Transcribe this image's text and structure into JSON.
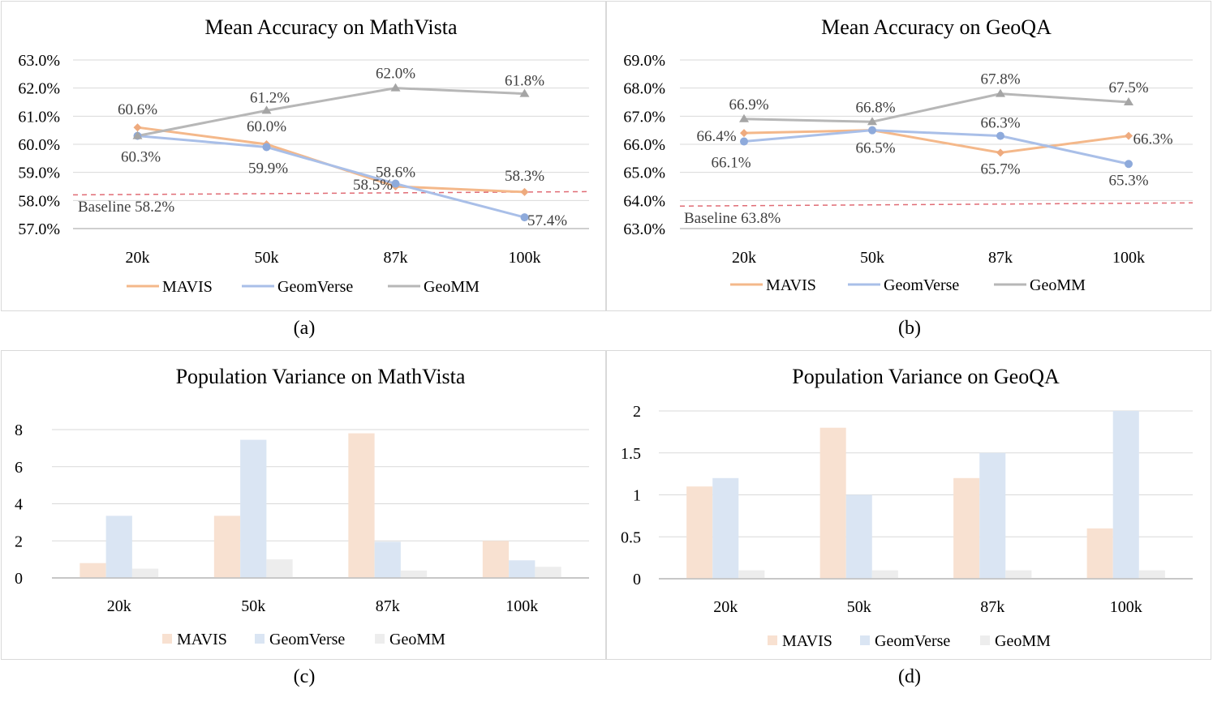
{
  "colors": {
    "MAVIS": "#f4c7a3",
    "MAVIS_line": "#f4b88a",
    "MAVIS_marker": "#eeaa7e",
    "GeomVerse": "#b4c7e7",
    "GeomVerse_line": "#a9bfe8",
    "GeomVerse_marker": "#8eaadb",
    "GeoMM": "#bfbfbf",
    "GeoMM_line": "#b7b7b7",
    "GeoMM_marker": "#a5a5a5",
    "bar_MAVIS": "#f8e1d1",
    "bar_GeomVerse": "#dae5f3",
    "bar_GeoMM": "#ededed",
    "baseline": "#e06c75",
    "grid": "#d9d9d9",
    "axis": "#bfbfbf",
    "text": "#404040"
  },
  "captions": {
    "a": "(a)",
    "b": "(b)",
    "c": "(c)",
    "d": "(d)"
  },
  "chart_data": [
    {
      "id": "a",
      "type": "line",
      "title": "Mean Accuracy on MathVista",
      "categories": [
        "20k",
        "50k",
        "87k",
        "100k"
      ],
      "ylim": [
        57.0,
        63.0
      ],
      "yticks": [
        57.0,
        58.0,
        59.0,
        60.0,
        61.0,
        62.0,
        63.0
      ],
      "ytick_labels": [
        "57.0%",
        "58.0%",
        "59.0%",
        "60.0%",
        "61.0%",
        "62.0%",
        "63.0%"
      ],
      "series": [
        {
          "name": "MAVIS",
          "values": [
            60.6,
            60.0,
            58.5,
            58.3
          ],
          "labels": [
            "60.6%",
            "60.0%",
            "58.5%",
            "58.3%"
          ]
        },
        {
          "name": "GeomVerse",
          "values": [
            60.3,
            59.9,
            58.6,
            57.4
          ],
          "labels": [
            "60.3%",
            "59.9%",
            "58.6%",
            "57.4%"
          ]
        },
        {
          "name": "GeoMM",
          "values": [
            60.3,
            61.2,
            62.0,
            61.8
          ],
          "labels": [
            "",
            "61.2%",
            "62.0%",
            "61.8%"
          ]
        }
      ],
      "baseline": {
        "value": 58.2,
        "label": "Baseline  58.2%"
      },
      "legend": [
        "MAVIS",
        "GeomVerse",
        "GeoMM"
      ]
    },
    {
      "id": "b",
      "type": "line",
      "title": "Mean Accuracy on GeoQA",
      "categories": [
        "20k",
        "50k",
        "87k",
        "100k"
      ],
      "ylim": [
        63.0,
        69.0
      ],
      "yticks": [
        63.0,
        64.0,
        65.0,
        66.0,
        67.0,
        68.0,
        69.0
      ],
      "ytick_labels": [
        "63.0%",
        "64.0%",
        "65.0%",
        "66.0%",
        "67.0%",
        "68.0%",
        "69.0%"
      ],
      "series": [
        {
          "name": "MAVIS",
          "values": [
            66.4,
            66.5,
            65.7,
            66.3
          ],
          "labels": [
            "66.4%",
            "",
            "65.7%",
            "66.3%"
          ]
        },
        {
          "name": "GeomVerse",
          "values": [
            66.1,
            66.5,
            66.3,
            65.3
          ],
          "labels": [
            "66.1%",
            "66.5%",
            "66.3%",
            "65.3%"
          ]
        },
        {
          "name": "GeoMM",
          "values": [
            66.9,
            66.8,
            67.8,
            67.5
          ],
          "labels": [
            "66.9%",
            "66.8%",
            "67.8%",
            "67.5%"
          ]
        }
      ],
      "baseline": {
        "value": 63.8,
        "label": "Baseline  63.8%"
      },
      "legend": [
        "MAVIS",
        "GeomVerse",
        "GeoMM"
      ]
    },
    {
      "id": "c",
      "type": "bar",
      "title": "Population Variance on MathVista",
      "categories": [
        "20k",
        "50k",
        "87k",
        "100k"
      ],
      "ylim": [
        0,
        8
      ],
      "yticks": [
        0,
        2,
        4,
        6,
        8
      ],
      "ytick_labels": [
        "0",
        "2",
        "4",
        "6",
        "8"
      ],
      "series": [
        {
          "name": "MAVIS",
          "values": [
            0.8,
            3.35,
            7.8,
            2.0
          ]
        },
        {
          "name": "GeomVerse",
          "values": [
            3.35,
            7.45,
            1.95,
            0.95
          ]
        },
        {
          "name": "GeoMM",
          "values": [
            0.5,
            1.0,
            0.4,
            0.6
          ]
        }
      ],
      "legend": [
        "MAVIS",
        "GeomVerse",
        "GeoMM"
      ]
    },
    {
      "id": "d",
      "type": "bar",
      "title": "Population Variance on GeoQA",
      "categories": [
        "20k",
        "50k",
        "87k",
        "100k"
      ],
      "ylim": [
        0,
        2
      ],
      "yticks": [
        0,
        0.5,
        1,
        1.5,
        2
      ],
      "ytick_labels": [
        "0",
        "0.5",
        "1",
        "1.5",
        "2"
      ],
      "series": [
        {
          "name": "MAVIS",
          "values": [
            1.1,
            1.8,
            1.2,
            0.6
          ]
        },
        {
          "name": "GeomVerse",
          "values": [
            1.2,
            1.0,
            1.5,
            2.0
          ]
        },
        {
          "name": "GeoMM",
          "values": [
            0.1,
            0.1,
            0.1,
            0.1
          ]
        }
      ],
      "legend": [
        "MAVIS",
        "GeomVerse",
        "GeoMM"
      ]
    }
  ]
}
